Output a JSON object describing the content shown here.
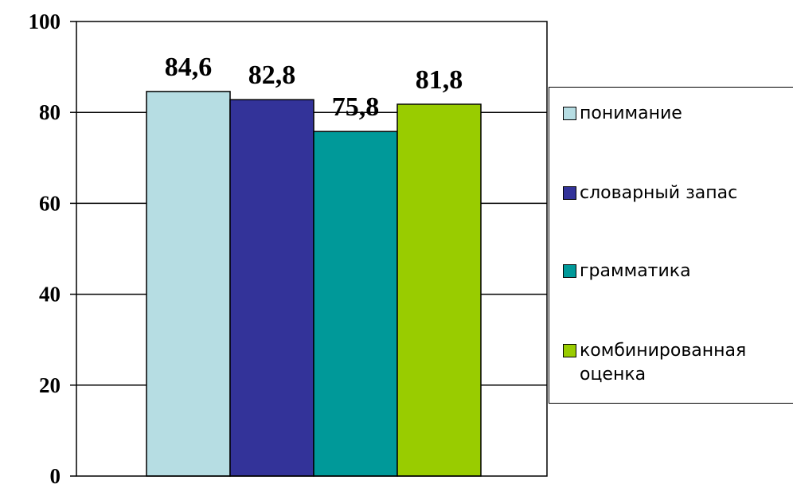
{
  "chart_data": {
    "type": "bar",
    "categories": [
      "понимание",
      "словарный запас",
      "грамматика",
      "комбинированная оценка"
    ],
    "values": [
      84.6,
      82.8,
      75.8,
      81.8
    ],
    "value_labels": [
      "84,6",
      "82,8",
      "75,8",
      "81,8"
    ],
    "colors": [
      "#b6dde3",
      "#333399",
      "#009999",
      "#99cc00"
    ],
    "ylim": [
      0,
      100
    ],
    "yticks": [
      0,
      20,
      40,
      60,
      80,
      100
    ],
    "title": "",
    "xlabel": "",
    "ylabel": "",
    "grid": true,
    "legend_position": "right",
    "legend": [
      {
        "label": "понимание",
        "color": "#b6dde3"
      },
      {
        "label": "словарный запас",
        "color": "#333399"
      },
      {
        "label": "грамматика",
        "color": "#009999"
      },
      {
        "label": "комбинированная оценка",
        "color": "#99cc00"
      }
    ]
  }
}
